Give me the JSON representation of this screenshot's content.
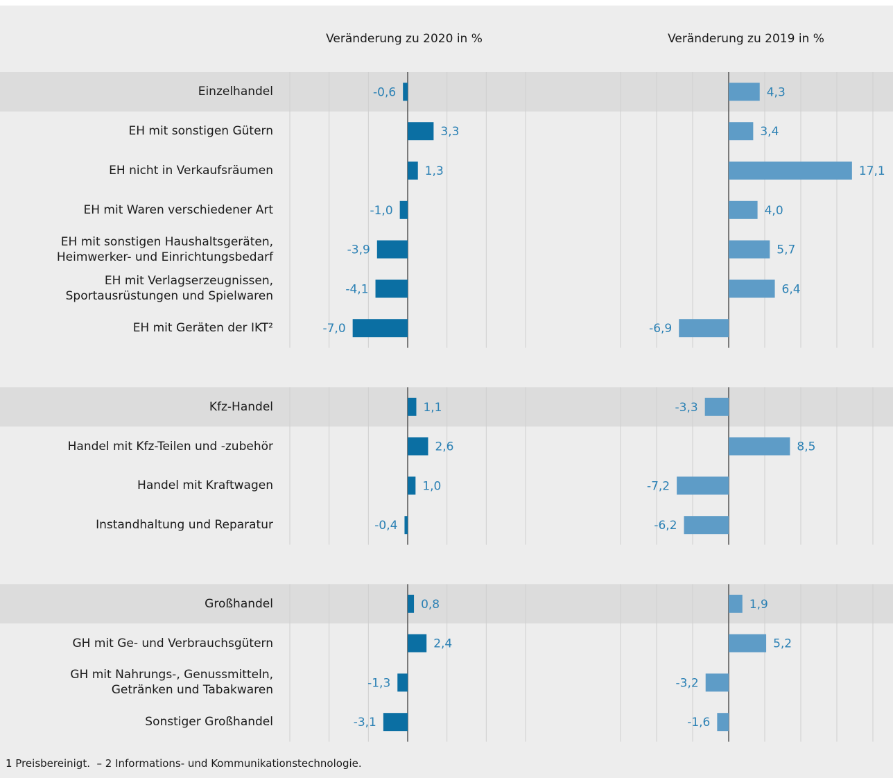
{
  "chart_data": [
    {
      "type": "bar",
      "title": "Veränderung zu 2020 in %",
      "categories": [
        "Einzelhandel",
        "EH mit sonstigen Gütern",
        "EH nicht in Verkaufsräumen",
        "EH mit Waren verschiedener Art",
        "EH mit sonstigen Haushaltsgeräten,\nHeimwerker- und Einrichtungsbedarf",
        "EH mit Verlagserzeugnissen,\nSportausrüstungen und Spielwaren",
        "EH mit Geräten der IKT²",
        "Kfz-Handel",
        "Handel mit Kfz-Teilen und -zubehör",
        "Handel mit Kraftwagen",
        "Instandhaltung und Reparatur",
        "Großhandel",
        "GH mit Ge- und Verbrauchsgütern",
        "GH mit Nahrungs-, Genussmitteln,\nGetränken und Tabakwaren",
        "Sonstiger Großhandel"
      ],
      "highlighted_rows": [
        0,
        7,
        11
      ],
      "values": [
        -0.6,
        3.3,
        1.3,
        -1.0,
        -3.9,
        -4.1,
        -7.0,
        1.1,
        2.6,
        1.0,
        -0.4,
        0.8,
        2.4,
        -1.3,
        -3.1
      ],
      "value_labels": [
        "-0,6",
        "3,3",
        "1,3",
        "-1,0",
        "-3,9",
        "-4,1",
        "-7,0",
        "1,1",
        "2,6",
        "1,0",
        "-0,4",
        "0,8",
        "2,4",
        "-1,3",
        "-3,1"
      ],
      "color": "#0b6fa3",
      "xlim": [
        -15,
        15
      ],
      "xticks": [
        -15,
        -10,
        -5,
        0,
        5,
        10,
        15
      ],
      "grid": true
    },
    {
      "type": "bar",
      "title": "Veränderung zu 2019 in %",
      "values": [
        4.3,
        3.4,
        17.1,
        4.0,
        5.7,
        6.4,
        -6.9,
        -3.3,
        8.5,
        -7.2,
        -6.2,
        1.9,
        5.2,
        -3.2,
        -1.6
      ],
      "value_labels": [
        "4,3",
        "3,4",
        "17,1",
        "4,0",
        "5,7",
        "6,4",
        "-6,9",
        "-3,3",
        "8,5",
        "-7,2",
        "-6,2",
        "1,9",
        "5,2",
        "-3,2",
        "-1,6"
      ],
      "color": "#5e9cc7",
      "xlim": [
        -15,
        20
      ],
      "xticks": [
        -15,
        -10,
        -5,
        0,
        5,
        10,
        15,
        20
      ],
      "grid": true
    }
  ],
  "footnote": "1 Preisbereinigt.  – 2 Informations- und Kommunikationstechnologie."
}
